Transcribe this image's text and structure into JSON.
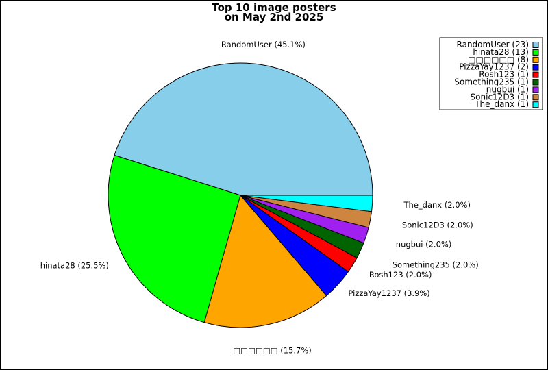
{
  "chart_data": {
    "type": "pie",
    "title": "Top 10 image posters",
    "subtitle": "on May 2nd 2025",
    "categories": [
      "RandomUser",
      "hinata28",
      "□□□□□□",
      "PizzaYay1237",
      "Rosh123",
      "Something235",
      "nugbui",
      "Sonic12D3",
      "The_danx"
    ],
    "values": [
      23,
      13,
      8,
      2,
      1,
      1,
      1,
      1,
      1
    ],
    "percent_labels": [
      "45.1%",
      "25.5%",
      "15.7%",
      "3.9%",
      "2.0%",
      "2.0%",
      "2.0%",
      "2.0%",
      "2.0%"
    ],
    "slice_labels": [
      "RandomUser (45.1%)",
      "hinata28 (25.5%)",
      "□□□□□□ (15.7%)",
      "PizzaYay1237 (3.9%)",
      "Rosh123 (2.0%)",
      "Something235 (2.0%)",
      "nugbui (2.0%)",
      "Sonic12D3 (2.0%)",
      "The_danx (2.0%)"
    ],
    "legend_entries": [
      "RandomUser (23)",
      "hinata28 (13)",
      "□□□□□□ (8)",
      "PizzaYay1237 (2)",
      "Rosh123 (1)",
      "Something235 (1)",
      "nugbui (1)",
      "Sonic12D3 (1)",
      "The_danx (1)"
    ],
    "colors": [
      "#87ceeb",
      "#00ff00",
      "#ffa500",
      "#0000ff",
      "#ff0000",
      "#006400",
      "#a020f0",
      "#cd853f",
      "#00ffff"
    ],
    "legend_position": "top-right"
  }
}
